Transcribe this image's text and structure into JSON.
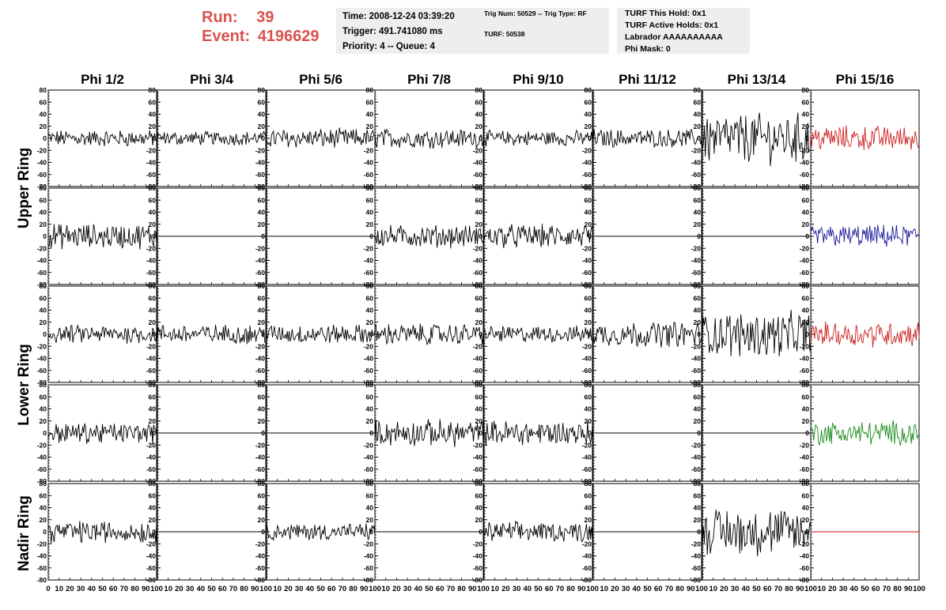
{
  "header": {
    "run_label": "Run:",
    "run_value": "39",
    "event_label": "Event:",
    "event_value": "4196629",
    "run_color": "#d9534f"
  },
  "info_panel_1": {
    "time": "Time: 2008-12-24 03:39:20",
    "trigger": "Trigger: 491.741080 ms",
    "priority": "Priority: 4 -- Queue: 4"
  },
  "info_panel_2": {
    "trig": "Trig Num: 50529 -- Trig Type: RF",
    "turf": "TURF: 50538"
  },
  "info_panel_3": {
    "this_hold": "TURF This Hold: 0x1",
    "active_holds": "TURF Active Holds: 0x1",
    "labrador": "Labrador AAAAAAAAAA",
    "phi_mask": "Phi Mask: 0"
  },
  "chart_data": {
    "type": "line",
    "column_titles": [
      "Phi 1/2",
      "Phi 3/4",
      "Phi 5/6",
      "Phi 7/8",
      "Phi 9/10",
      "Phi 11/12",
      "Phi 13/14",
      "Phi 15/16"
    ],
    "ring_labels": [
      "Upper Ring",
      "Lower Ring",
      "Nadir Ring"
    ],
    "ylim": [
      -80,
      80
    ],
    "y_ticks": [
      -80,
      -60,
      -40,
      -20,
      0,
      20,
      40,
      60,
      80
    ],
    "xlim": [
      0,
      100
    ],
    "x_tick_labels": [
      "0",
      "10",
      "20",
      "30",
      "40",
      "50",
      "60",
      "70",
      "80",
      "90",
      "100"
    ],
    "colors": {
      "red": "#cc2222",
      "blue": "#1a1a9a",
      "green": "#1a8a1a",
      "black": "#000000",
      "nadir_red": "#cc0000"
    },
    "grid": [
      [
        {
          "amp": 12,
          "c": "black"
        },
        {
          "amp": 10,
          "c": "black"
        },
        {
          "amp": 14,
          "c": "black"
        },
        {
          "amp": 14,
          "c": "black"
        },
        {
          "amp": 11,
          "c": "black"
        },
        {
          "amp": 13,
          "c": "black"
        },
        {
          "amp": 36,
          "c": "black"
        },
        {
          "amp": 18,
          "c": "red"
        }
      ],
      [
        {
          "amp": 18,
          "c": "black"
        },
        {
          "amp": 0,
          "c": "black"
        },
        {
          "amp": 0,
          "c": "black"
        },
        {
          "amp": 16,
          "c": "black"
        },
        {
          "amp": 17,
          "c": "black"
        },
        {
          "amp": 0,
          "c": "black"
        },
        {
          "amp": 0,
          "c": "black"
        },
        {
          "amp": 16,
          "c": "blue"
        }
      ],
      [
        {
          "amp": 13,
          "c": "black"
        },
        {
          "amp": 14,
          "c": "black"
        },
        {
          "amp": 14,
          "c": "black"
        },
        {
          "amp": 15,
          "c": "black"
        },
        {
          "amp": 12,
          "c": "black"
        },
        {
          "amp": 18,
          "c": "black"
        },
        {
          "amp": 32,
          "c": "black"
        },
        {
          "amp": 18,
          "c": "red"
        }
      ],
      [
        {
          "amp": 15,
          "c": "black"
        },
        {
          "amp": 0,
          "c": "black"
        },
        {
          "amp": 0,
          "c": "black"
        },
        {
          "amp": 19,
          "c": "black"
        },
        {
          "amp": 18,
          "c": "black"
        },
        {
          "amp": 0,
          "c": "black"
        },
        {
          "amp": 0,
          "c": "black"
        },
        {
          "amp": 17,
          "c": "green"
        }
      ],
      [
        {
          "amp": 16,
          "c": "black"
        },
        {
          "amp": 0,
          "c": "black"
        },
        {
          "amp": 12,
          "c": "black"
        },
        {
          "amp": 0,
          "c": "black"
        },
        {
          "amp": 14,
          "c": "black"
        },
        {
          "amp": 0,
          "c": "black"
        },
        {
          "amp": 34,
          "c": "black"
        },
        {
          "amp": 0,
          "c": "nadir_red"
        }
      ]
    ]
  }
}
